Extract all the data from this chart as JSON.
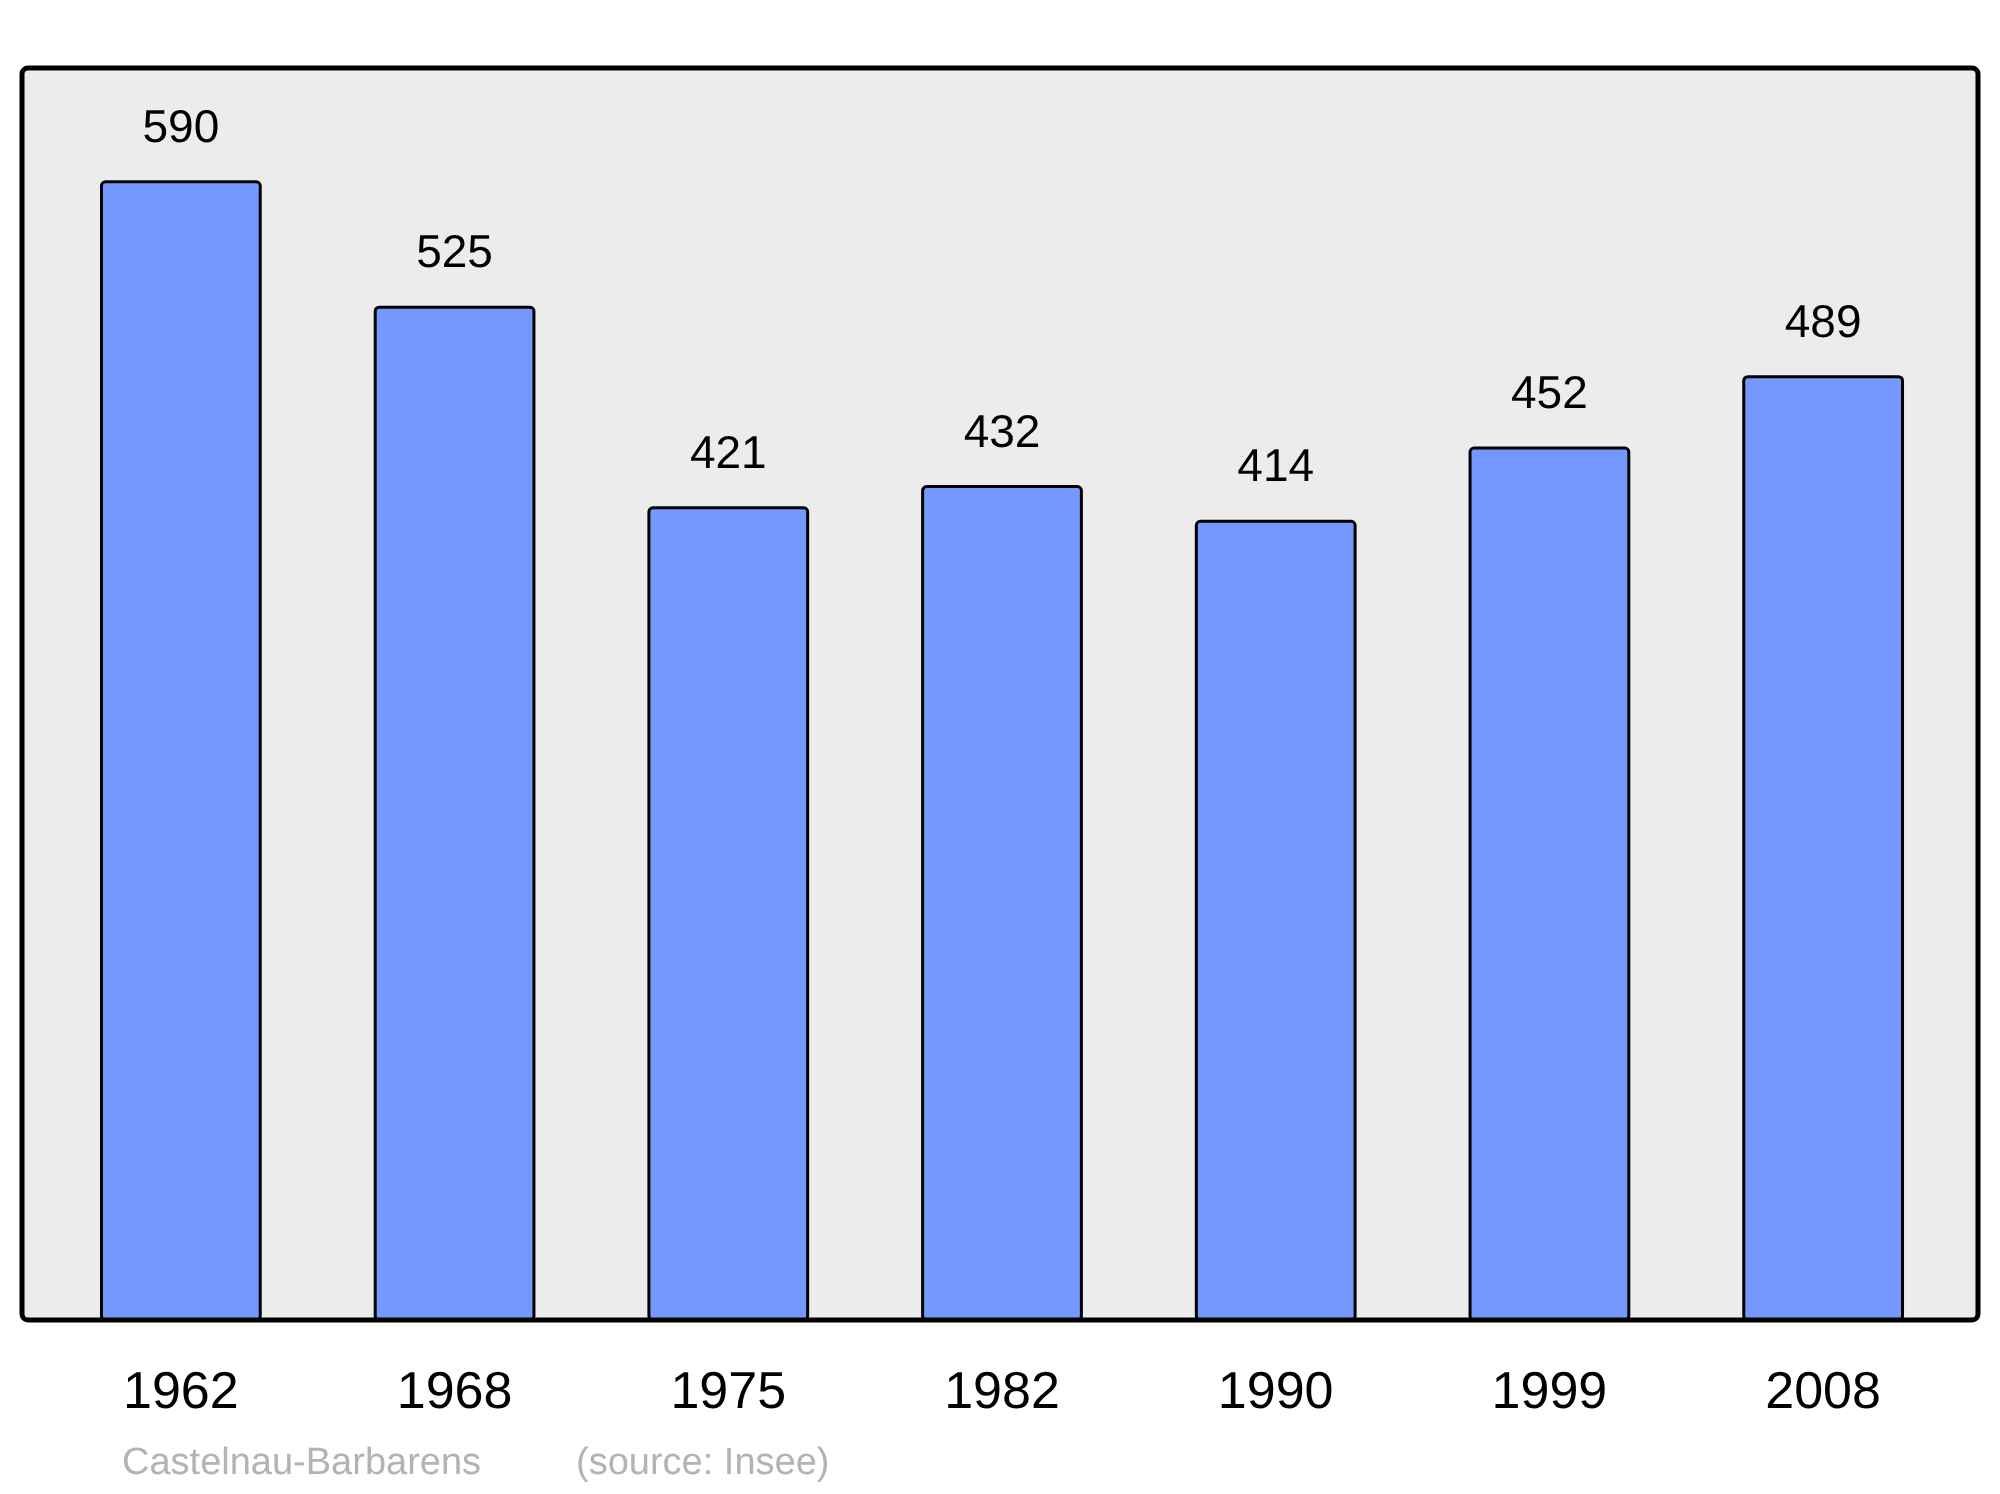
{
  "chart_data": {
    "type": "bar",
    "categories": [
      "1962",
      "1968",
      "1975",
      "1982",
      "1990",
      "1999",
      "2008"
    ],
    "values": [
      590,
      525,
      421,
      432,
      414,
      452,
      489
    ],
    "color": "#7399ff",
    "data_labels": true,
    "annotations": [
      "Castelnau-Barbarens",
      "(source: Insee)"
    ]
  }
}
